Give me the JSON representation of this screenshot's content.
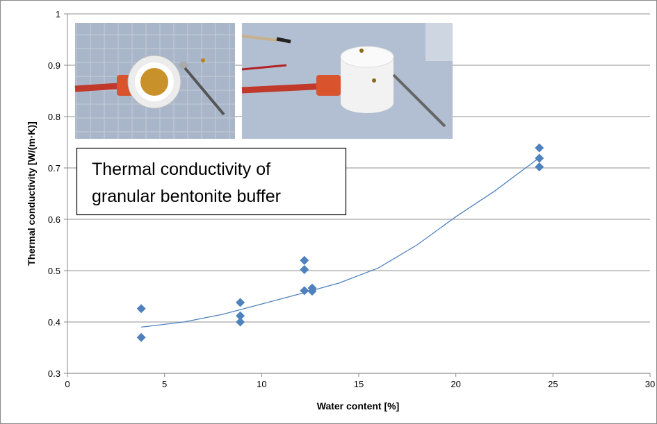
{
  "chart_data": {
    "type": "scatter",
    "xlabel": "Water content [%]",
    "ylabel": "Thermal conductivity [W/(m·K)]",
    "annotation": [
      "Thermal conductivity of",
      "granular bentonite buffer"
    ],
    "xlim": [
      0,
      30
    ],
    "xticks": [
      0,
      5,
      10,
      15,
      20,
      25,
      30
    ],
    "ylim": [
      0.3,
      1
    ],
    "yticks": [
      0.3,
      0.4,
      0.5,
      0.6,
      0.7,
      0.8,
      0.9,
      1
    ],
    "grid": true,
    "series": [
      {
        "color": "#4f81bd",
        "x": [
          3.8,
          3.8,
          8.9,
          8.9,
          8.9,
          12.2,
          12.2,
          12.2,
          12.6,
          12.6,
          24.3,
          24.3,
          24.3
        ],
        "values": [
          0.426,
          0.37,
          0.438,
          0.412,
          0.4,
          0.52,
          0.502,
          0.461,
          0.466,
          0.46,
          0.739,
          0.719,
          0.702
        ]
      }
    ],
    "trendline": {
      "color": "#4f81bd",
      "x": [
        3.8,
        6,
        8,
        10,
        12,
        14,
        16,
        18,
        20,
        22,
        24.3
      ],
      "values": [
        0.39,
        0.4,
        0.415,
        0.435,
        0.455,
        0.476,
        0.505,
        0.55,
        0.605,
        0.655,
        0.72
      ]
    }
  }
}
